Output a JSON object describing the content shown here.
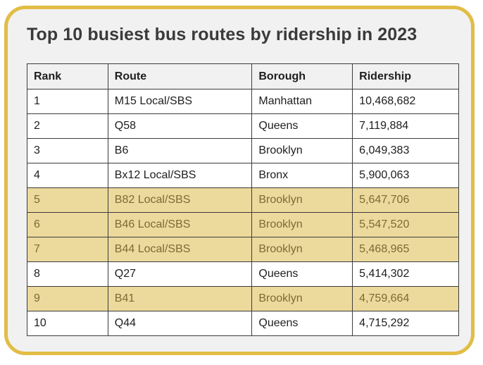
{
  "title": "Top 10 busiest bus routes by ridership in 2023",
  "colors": {
    "frame_border": "#e2bd45",
    "highlight_row": "#ecd99c",
    "highlight_text": "#7d6b36"
  },
  "table": {
    "headers": [
      "Rank",
      "Route",
      "Borough",
      "Ridership"
    ],
    "rows": [
      {
        "rank": "1",
        "route": "M15 Local/SBS",
        "borough": "Manhattan",
        "ridership": "10,468,682",
        "highlighted": false
      },
      {
        "rank": "2",
        "route": "Q58",
        "borough": "Queens",
        "ridership": "7,119,884",
        "highlighted": false
      },
      {
        "rank": "3",
        "route": "B6",
        "borough": "Brooklyn",
        "ridership": "6,049,383",
        "highlighted": false
      },
      {
        "rank": "4",
        "route": "Bx12 Local/SBS",
        "borough": "Bronx",
        "ridership": "5,900,063",
        "highlighted": false
      },
      {
        "rank": "5",
        "route": "B82 Local/SBS",
        "borough": "Brooklyn",
        "ridership": "5,647,706",
        "highlighted": true
      },
      {
        "rank": "6",
        "route": "B46 Local/SBS",
        "borough": "Brooklyn",
        "ridership": "5,547,520",
        "highlighted": true
      },
      {
        "rank": "7",
        "route": "B44 Local/SBS",
        "borough": "Brooklyn",
        "ridership": "5,468,965",
        "highlighted": true
      },
      {
        "rank": "8",
        "route": "Q27",
        "borough": "Queens",
        "ridership": "5,414,302",
        "highlighted": false
      },
      {
        "rank": "9",
        "route": "B41",
        "borough": "Brooklyn",
        "ridership": "4,759,664",
        "highlighted": true
      },
      {
        "rank": "10",
        "route": "Q44",
        "borough": "Queens",
        "ridership": "4,715,292",
        "highlighted": false
      }
    ]
  }
}
